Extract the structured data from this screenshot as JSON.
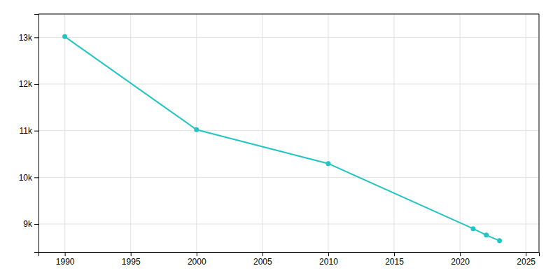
{
  "chart_data": {
    "type": "line",
    "x": [
      1990,
      2000,
      2010,
      2021,
      2022,
      2023
    ],
    "values": [
      13015,
      11021,
      10295,
      8900,
      8762,
      8643
    ],
    "color": "#22c4c4",
    "marker": "circle",
    "xlim": [
      1988,
      2026
    ],
    "xticks": [
      1990,
      1995,
      2000,
      2005,
      2010,
      2015,
      2020,
      2025
    ],
    "ylim": [
      8400,
      13500
    ],
    "yticks": [
      {
        "value": 9000,
        "label": "9k"
      },
      {
        "value": 10000,
        "label": "10k"
      },
      {
        "value": 11000,
        "label": "11k"
      },
      {
        "value": 12000,
        "label": "12k"
      },
      {
        "value": 13000,
        "label": "13k"
      }
    ],
    "grid": true
  }
}
